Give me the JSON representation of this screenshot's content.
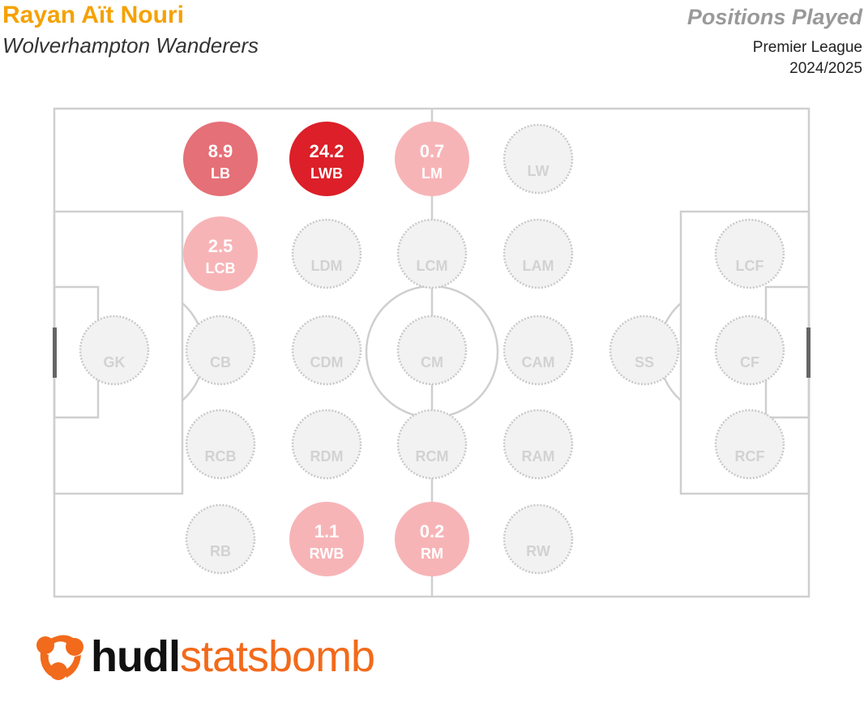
{
  "header": {
    "player": "Rayan Aït Nouri",
    "team": "Wolverhampton Wanderers",
    "chart_title": "Positions Played",
    "competition": "Premier League",
    "season": "2024/2025"
  },
  "logo": {
    "part1": "hudl",
    "part2": "statsbomb"
  },
  "chart_data": {
    "type": "pitch-positions",
    "title": "Positions Played",
    "colors": {
      "high": "#dc1f28",
      "mid": "#e57077",
      "low": "#f7b4b7",
      "empty": "#f2f2f2"
    },
    "positions": [
      {
        "label": "GK",
        "value": null
      },
      {
        "label": "LB",
        "value": 8.9,
        "color": "#e57077"
      },
      {
        "label": "LCB",
        "value": 2.5,
        "color": "#f7b4b7"
      },
      {
        "label": "CB",
        "value": null
      },
      {
        "label": "RCB",
        "value": null
      },
      {
        "label": "RB",
        "value": null
      },
      {
        "label": "LWB",
        "value": 24.2,
        "color": "#dc1f28"
      },
      {
        "label": "LDM",
        "value": null
      },
      {
        "label": "CDM",
        "value": null
      },
      {
        "label": "RDM",
        "value": null
      },
      {
        "label": "RWB",
        "value": 1.1,
        "color": "#f7b4b7"
      },
      {
        "label": "LM",
        "value": 0.7,
        "color": "#f7b4b7"
      },
      {
        "label": "LCM",
        "value": null
      },
      {
        "label": "CM",
        "value": null
      },
      {
        "label": "RCM",
        "value": null
      },
      {
        "label": "RM",
        "value": 0.2,
        "color": "#f7b4b7"
      },
      {
        "label": "LW",
        "value": null
      },
      {
        "label": "LAM",
        "value": null
      },
      {
        "label": "CAM",
        "value": null
      },
      {
        "label": "RAM",
        "value": null
      },
      {
        "label": "RW",
        "value": null
      },
      {
        "label": "SS",
        "value": null
      },
      {
        "label": "LCF",
        "value": null
      },
      {
        "label": "CF",
        "value": null
      },
      {
        "label": "RCF",
        "value": null
      }
    ]
  }
}
